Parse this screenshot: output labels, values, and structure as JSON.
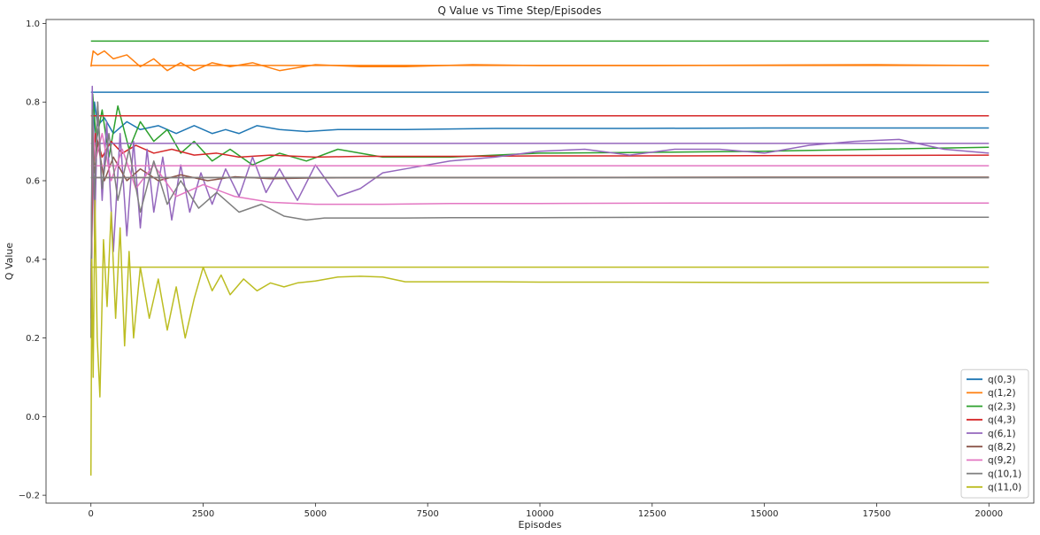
{
  "chart_data": {
    "type": "line",
    "title": "Q Value vs Time Step/Episodes",
    "xlabel": "Episodes",
    "ylabel": "Q Value",
    "xlim": [
      -1000,
      21000
    ],
    "ylim": [
      -0.22,
      1.01
    ],
    "x_ticks": [
      0,
      2500,
      5000,
      7500,
      10000,
      12500,
      15000,
      17500,
      20000
    ],
    "x_tick_labels": [
      "0",
      "2500",
      "5000",
      "7500",
      "10000",
      "12500",
      "15000",
      "17500",
      "20000"
    ],
    "y_ticks": [
      -0.2,
      0.0,
      0.2,
      0.4,
      0.6,
      0.8,
      1.0
    ],
    "y_tick_labels": [
      "−0.2",
      "0.0",
      "0.2",
      "0.4",
      "0.6",
      "0.8",
      "1.0"
    ],
    "grid": false,
    "legend_position": "bottom-right",
    "series": [
      {
        "name": "q(0,3)",
        "color": "#1f77b4",
        "reference": 0.825,
        "x": [
          0,
          30,
          80,
          150,
          300,
          500,
          800,
          1100,
          1500,
          1900,
          2300,
          2700,
          3000,
          3300,
          3700,
          4200,
          4800,
          5500,
          7000,
          9000,
          12000,
          15000,
          17500,
          20000
        ],
        "y": [
          0.25,
          0.55,
          0.8,
          0.74,
          0.76,
          0.72,
          0.75,
          0.73,
          0.74,
          0.72,
          0.74,
          0.72,
          0.73,
          0.72,
          0.74,
          0.73,
          0.725,
          0.73,
          0.73,
          0.733,
          0.733,
          0.734,
          0.734,
          0.734
        ]
      },
      {
        "name": "q(1,2)",
        "color": "#ff7f0e",
        "reference": 0.893,
        "x": [
          0,
          50,
          150,
          300,
          500,
          800,
          1100,
          1400,
          1700,
          2000,
          2300,
          2700,
          3100,
          3600,
          4200,
          5000,
          6000,
          7000,
          8500,
          10000,
          12500,
          15000,
          17500,
          20000
        ],
        "y": [
          0.89,
          0.93,
          0.92,
          0.93,
          0.91,
          0.92,
          0.89,
          0.91,
          0.88,
          0.9,
          0.88,
          0.9,
          0.89,
          0.9,
          0.88,
          0.895,
          0.89,
          0.89,
          0.895,
          0.893,
          0.893,
          0.894,
          0.895,
          0.893
        ]
      },
      {
        "name": "q(2,3)",
        "color": "#2ca02c",
        "reference": 0.955,
        "x": [
          0,
          40,
          120,
          250,
          400,
          600,
          850,
          1100,
          1400,
          1700,
          2000,
          2300,
          2700,
          3100,
          3600,
          4200,
          4800,
          5500,
          6500,
          8000,
          10000,
          12500,
          15000,
          17500,
          20000
        ],
        "y": [
          0.3,
          0.82,
          0.7,
          0.78,
          0.66,
          0.79,
          0.68,
          0.75,
          0.7,
          0.73,
          0.67,
          0.7,
          0.65,
          0.68,
          0.64,
          0.67,
          0.65,
          0.68,
          0.66,
          0.66,
          0.67,
          0.672,
          0.675,
          0.68,
          0.685
        ]
      },
      {
        "name": "q(4,3)",
        "color": "#d62728",
        "reference": 0.765,
        "x": [
          0,
          40,
          100,
          250,
          450,
          700,
          1000,
          1400,
          1800,
          2300,
          2800,
          3300,
          4000,
          5000,
          6000,
          8000,
          10000,
          13000,
          16000,
          20000
        ],
        "y": [
          0.3,
          0.6,
          0.72,
          0.66,
          0.7,
          0.67,
          0.69,
          0.67,
          0.68,
          0.665,
          0.67,
          0.66,
          0.665,
          0.66,
          0.662,
          0.662,
          0.663,
          0.663,
          0.664,
          0.665
        ]
      },
      {
        "name": "q(6,1)",
        "color": "#9467bd",
        "reference": 0.695,
        "x": [
          0,
          30,
          80,
          150,
          250,
          350,
          500,
          650,
          800,
          950,
          1100,
          1250,
          1400,
          1600,
          1800,
          2000,
          2200,
          2450,
          2700,
          3000,
          3300,
          3600,
          3900,
          4200,
          4600,
          5000,
          5500,
          6000,
          6500,
          7000,
          8000,
          9000,
          10000,
          11000,
          12000,
          13000,
          14000,
          15000,
          16000,
          17000,
          18000,
          19000,
          20000
        ],
        "y": [
          0.2,
          0.84,
          0.45,
          0.8,
          0.55,
          0.75,
          0.42,
          0.72,
          0.46,
          0.7,
          0.48,
          0.68,
          0.52,
          0.66,
          0.5,
          0.64,
          0.52,
          0.62,
          0.54,
          0.63,
          0.56,
          0.66,
          0.57,
          0.63,
          0.55,
          0.64,
          0.56,
          0.58,
          0.62,
          0.63,
          0.65,
          0.66,
          0.675,
          0.68,
          0.665,
          0.68,
          0.68,
          0.67,
          0.69,
          0.7,
          0.705,
          0.68,
          0.67
        ]
      },
      {
        "name": "q(8,2)",
        "color": "#8c564b",
        "reference": 0.608,
        "x": [
          0,
          30,
          80,
          150,
          300,
          500,
          800,
          1100,
          1500,
          2000,
          2600,
          3200,
          4000,
          5000,
          7000,
          10000,
          15000,
          20000
        ],
        "y": [
          0.25,
          0.72,
          0.62,
          0.7,
          0.6,
          0.66,
          0.6,
          0.63,
          0.6,
          0.615,
          0.6,
          0.61,
          0.605,
          0.607,
          0.608,
          0.608,
          0.609,
          0.609
        ]
      },
      {
        "name": "q(9,2)",
        "color": "#e377c2",
        "reference": 0.638,
        "x": [
          0,
          40,
          100,
          250,
          450,
          700,
          1000,
          1400,
          1900,
          2500,
          3200,
          4000,
          5000,
          6500,
          8000,
          10000,
          13000,
          16000,
          20000
        ],
        "y": [
          0.3,
          0.75,
          0.65,
          0.72,
          0.6,
          0.68,
          0.58,
          0.64,
          0.56,
          0.59,
          0.56,
          0.545,
          0.54,
          0.54,
          0.542,
          0.542,
          0.543,
          0.543,
          0.543
        ]
      },
      {
        "name": "q(10,1)",
        "color": "#7f7f7f",
        "reference": 0.608,
        "x": [
          0,
          30,
          80,
          150,
          250,
          400,
          600,
          850,
          1100,
          1400,
          1700,
          2000,
          2400,
          2800,
          3300,
          3800,
          4300,
          4800,
          5200,
          6000,
          7000,
          8000,
          10000,
          13000,
          16000,
          20000
        ],
        "y": [
          0.2,
          0.78,
          0.55,
          0.8,
          0.58,
          0.72,
          0.55,
          0.68,
          0.52,
          0.65,
          0.54,
          0.6,
          0.53,
          0.57,
          0.52,
          0.54,
          0.51,
          0.5,
          0.505,
          0.505,
          0.505,
          0.506,
          0.506,
          0.507,
          0.507,
          0.507
        ]
      },
      {
        "name": "q(11,0)",
        "color": "#bcbd22",
        "reference": 0.38,
        "x": [
          0,
          20,
          50,
          90,
          140,
          200,
          280,
          360,
          450,
          550,
          650,
          750,
          850,
          950,
          1100,
          1300,
          1500,
          1700,
          1900,
          2100,
          2300,
          2500,
          2700,
          2900,
          3100,
          3400,
          3700,
          4000,
          4300,
          4600,
          5000,
          5500,
          6000,
          6500,
          7000,
          8000,
          9000,
          10000,
          12000,
          15000,
          17500,
          20000
        ],
        "y": [
          -0.15,
          0.4,
          0.1,
          0.55,
          0.2,
          0.05,
          0.45,
          0.28,
          0.52,
          0.25,
          0.48,
          0.18,
          0.42,
          0.2,
          0.38,
          0.25,
          0.35,
          0.22,
          0.33,
          0.2,
          0.3,
          0.38,
          0.32,
          0.36,
          0.31,
          0.35,
          0.32,
          0.34,
          0.33,
          0.34,
          0.345,
          0.355,
          0.357,
          0.355,
          0.343,
          0.343,
          0.343,
          0.342,
          0.342,
          0.341,
          0.341,
          0.341
        ]
      }
    ]
  }
}
